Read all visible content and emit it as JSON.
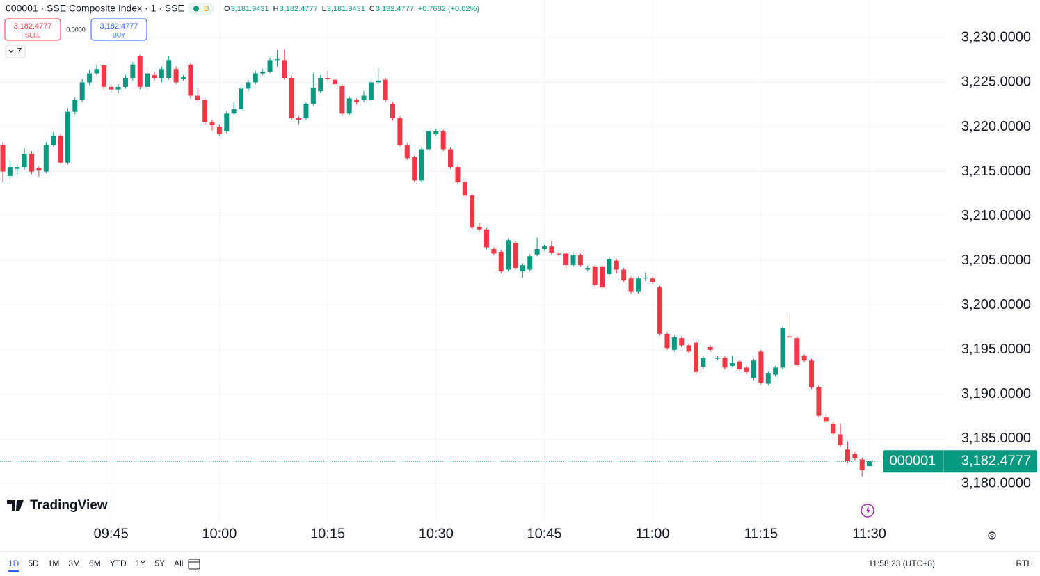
{
  "header": {
    "symbol_line": "000001 · SSE Composite Index · 1 · SSE",
    "badge": "D",
    "ohlc_legend": [
      {
        "key": "O",
        "value": "3,181.9431"
      },
      {
        "key": "H",
        "value": "3,182.4777"
      },
      {
        "key": "L",
        "value": "3,181.9431"
      },
      {
        "key": "C",
        "value": "3,182.4777"
      }
    ],
    "change": "+0.7682 (+0.02%)",
    "sell": {
      "price": "3,182.4777",
      "label": "SELL"
    },
    "spread": "0.0000",
    "buy": {
      "price": "3,182.4777",
      "label": "BUY"
    },
    "indicators_count": "7"
  },
  "chart_data": {
    "type": "candlestick",
    "up_color": "#089981",
    "down_color": "#f23645",
    "grid": true,
    "categories": [
      null,
      null,
      null,
      null,
      null,
      null,
      null,
      null,
      null,
      null,
      null,
      null,
      null,
      null,
      null,
      "09:45",
      null,
      null,
      null,
      null,
      null,
      null,
      null,
      null,
      null,
      null,
      null,
      null,
      null,
      null,
      "10:00",
      null,
      null,
      null,
      null,
      null,
      null,
      null,
      null,
      null,
      null,
      null,
      null,
      null,
      null,
      "10:15",
      null,
      null,
      null,
      null,
      null,
      null,
      null,
      null,
      null,
      null,
      null,
      null,
      null,
      null,
      "10:30",
      null,
      null,
      null,
      null,
      null,
      null,
      null,
      null,
      null,
      null,
      null,
      null,
      null,
      null,
      "10:45",
      null,
      null,
      null,
      null,
      null,
      null,
      null,
      null,
      null,
      null,
      null,
      null,
      null,
      null,
      "11:00",
      null,
      null,
      null,
      null,
      null,
      null,
      null,
      null,
      null,
      null,
      null,
      null,
      null,
      null,
      "11:15",
      null,
      null,
      null,
      null,
      null,
      null,
      null,
      null,
      null,
      null,
      null,
      null,
      null,
      null,
      "11:30"
    ],
    "ohlc": [
      [
        3218,
        3218.3,
        3213.8,
        3215
      ],
      [
        3214.5,
        3216.2,
        3214.2,
        3215.5
      ],
      [
        3215.3,
        3215.8,
        3214.6,
        3215.5
      ],
      [
        3215.5,
        3217.6,
        3215.2,
        3217
      ],
      [
        3217,
        3217.3,
        3214.7,
        3215
      ],
      [
        3215.4,
        3215.6,
        3214.4,
        3215.1
      ],
      [
        3215,
        3218.3,
        3214.8,
        3218
      ],
      [
        3218,
        3219.4,
        3217.8,
        3219
      ],
      [
        3219,
        3219.3,
        3215.8,
        3216
      ],
      [
        3216,
        3222.1,
        3215.8,
        3221.7
      ],
      [
        3221.7,
        3223.3,
        3221.4,
        3223
      ],
      [
        3223,
        3225.4,
        3222.8,
        3225
      ],
      [
        3225,
        3226.4,
        3224.7,
        3226
      ],
      [
        3226,
        3227,
        3225.8,
        3226.5
      ],
      [
        3226.9,
        3227.2,
        3224.2,
        3224.5
      ],
      [
        3224.5,
        3224.8,
        3223.8,
        3224.2
      ],
      [
        3224.2,
        3224.8,
        3223.8,
        3224.5
      ],
      [
        3224.5,
        3225.8,
        3224.3,
        3225.5
      ],
      [
        3225.5,
        3227.3,
        3225.2,
        3227
      ],
      [
        3228,
        3228.1,
        3224.2,
        3224.5
      ],
      [
        3224.5,
        3226.3,
        3224.2,
        3226
      ],
      [
        3225.8,
        3226.2,
        3225.2,
        3225.5
      ],
      [
        3225.5,
        3226.8,
        3225,
        3226.5
      ],
      [
        3225.5,
        3228,
        3225.3,
        3227.5
      ],
      [
        3226.5,
        3226.8,
        3224.8,
        3225
      ],
      [
        3225.4,
        3225.8,
        3225.2,
        3225.6
      ],
      [
        3227,
        3227.2,
        3223.2,
        3223.5
      ],
      [
        3223.5,
        3224.3,
        3222.8,
        3223
      ],
      [
        3223,
        3223.3,
        3220.2,
        3220.5
      ],
      [
        3220.5,
        3220.8,
        3219.6,
        3220.2
      ],
      [
        3220,
        3220.3,
        3219,
        3219.2
      ],
      [
        3219.5,
        3221.8,
        3219.3,
        3221.5
      ],
      [
        3221.5,
        3222.8,
        3221.3,
        3222
      ],
      [
        3222,
        3224.5,
        3221.8,
        3224.3
      ],
      [
        3224.3,
        3225.3,
        3224,
        3225
      ],
      [
        3225,
        3226.3,
        3224.8,
        3226
      ],
      [
        3226,
        3226.5,
        3225.8,
        3226.2
      ],
      [
        3226.2,
        3227.8,
        3226,
        3227.5
      ],
      [
        3227.5,
        3228.6,
        3226.8,
        3227.6
      ],
      [
        3227.5,
        3228.7,
        3225.3,
        3225.5
      ],
      [
        3225.5,
        3225.7,
        3220.8,
        3221
      ],
      [
        3221,
        3221.2,
        3220.3,
        3220.8
      ],
      [
        3221,
        3222.8,
        3220.8,
        3222.6
      ],
      [
        3222.6,
        3226,
        3222.4,
        3224.4
      ],
      [
        3224,
        3225.8,
        3223.8,
        3225.5
      ],
      [
        3225.5,
        3226.3,
        3225.2,
        3225.4
      ],
      [
        3225.3,
        3225.5,
        3224.5,
        3224.8
      ],
      [
        3224.6,
        3224.8,
        3221.2,
        3221.5
      ],
      [
        3221.5,
        3223.4,
        3221.3,
        3223.2
      ],
      [
        3223,
        3223.2,
        3222.5,
        3222.8
      ],
      [
        3223,
        3224,
        3222.8,
        3223.5
      ],
      [
        3223,
        3225.2,
        3222.8,
        3225
      ],
      [
        3225,
        3226.6,
        3224.7,
        3225.2
      ],
      [
        3225.3,
        3225.5,
        3222.8,
        3223
      ],
      [
        3222.6,
        3222.8,
        3220.7,
        3221
      ],
      [
        3221,
        3221.2,
        3217.8,
        3218
      ],
      [
        3218,
        3218.2,
        3216.3,
        3216.5
      ],
      [
        3216.6,
        3216.8,
        3213.8,
        3214
      ],
      [
        3214,
        3217.7,
        3213.8,
        3217.5
      ],
      [
        3217.5,
        3219.7,
        3217.3,
        3219.5
      ],
      [
        3219.2,
        3219.8,
        3219,
        3219.5
      ],
      [
        3219.5,
        3219.7,
        3217.3,
        3217.5
      ],
      [
        3217.5,
        3217.7,
        3215.3,
        3215.5
      ],
      [
        3215.5,
        3215.7,
        3213.6,
        3213.8
      ],
      [
        3213.8,
        3214,
        3212.1,
        3212.3
      ],
      [
        3212.3,
        3212.5,
        3208.5,
        3208.7
      ],
      [
        3208.8,
        3209.2,
        3208.3,
        3208.5
      ],
      [
        3208.5,
        3208.7,
        3206.3,
        3206.5
      ],
      [
        3206.3,
        3206.5,
        3205.6,
        3205.8
      ],
      [
        3206,
        3206.2,
        3203.6,
        3203.8
      ],
      [
        3204,
        3207.5,
        3203.8,
        3207.3
      ],
      [
        3207,
        3207.2,
        3204,
        3204.2
      ],
      [
        3203.8,
        3204.7,
        3203.1,
        3204.5
      ],
      [
        3204,
        3205.7,
        3203.8,
        3205.5
      ],
      [
        3205.7,
        3207.6,
        3205.5,
        3206.3
      ],
      [
        3206.3,
        3206.8,
        3206.1,
        3206.6
      ],
      [
        3206.6,
        3207.2,
        3205.7,
        3205.9
      ],
      [
        3205.8,
        3206,
        3205.5,
        3205.7
      ],
      [
        3205.8,
        3206,
        3204.1,
        3204.5
      ],
      [
        3204.5,
        3205.8,
        3204.3,
        3205.6
      ],
      [
        3205.6,
        3205.8,
        3204.3,
        3204.5
      ],
      [
        3204,
        3204.4,
        3203.8,
        3204.2
      ],
      [
        3204.3,
        3204.5,
        3202.1,
        3202.3
      ],
      [
        3204.3,
        3204.5,
        3201.8,
        3202
      ],
      [
        3203.5,
        3205.4,
        3203.3,
        3205.2
      ],
      [
        3205,
        3205.2,
        3203.6,
        3204
      ],
      [
        3204,
        3204.2,
        3202.6,
        3202.8
      ],
      [
        3203,
        3203.2,
        3201.3,
        3201.5
      ],
      [
        3201.5,
        3203.2,
        3201.3,
        3203
      ],
      [
        3203,
        3203.7,
        3202.7,
        3203.1
      ],
      [
        3203,
        3203.2,
        3202.4,
        3202.6
      ],
      [
        3202,
        3202.2,
        3196.6,
        3196.8
      ],
      [
        3196.8,
        3197,
        3195,
        3195.2
      ],
      [
        3195,
        3196.6,
        3194.8,
        3196.4
      ],
      [
        3196.3,
        3196.5,
        3195.3,
        3195.5
      ],
      [
        3195.5,
        3195.7,
        3194.6,
        3194.8
      ],
      [
        3195.8,
        3196,
        3192.3,
        3192.5
      ],
      [
        3193.1,
        3194.3,
        3192.8,
        3194.1
      ],
      [
        3195.3,
        3195.5,
        3194.8,
        3195
      ],
      [
        3194,
        3194.3,
        3193.8,
        3194.1
      ],
      [
        3194.1,
        3194.3,
        3192.8,
        3193
      ],
      [
        3193.2,
        3194.3,
        3193,
        3193.5
      ],
      [
        3193.7,
        3193.9,
        3192.6,
        3192.8
      ],
      [
        3193,
        3193.2,
        3192.3,
        3192.5
      ],
      [
        3191.8,
        3194,
        3191.6,
        3193.8
      ],
      [
        3194.8,
        3195,
        3191.1,
        3191.3
      ],
      [
        3191.2,
        3192.6,
        3191,
        3192.4
      ],
      [
        3192.2,
        3193.2,
        3192,
        3193
      ],
      [
        3193,
        3197.6,
        3192.8,
        3197.4
      ],
      [
        3196.5,
        3199.1,
        3196.2,
        3196.4
      ],
      [
        3196.3,
        3196.5,
        3193.1,
        3193.3
      ],
      [
        3194.3,
        3194.5,
        3193.6,
        3193.8
      ],
      [
        3193.8,
        3194,
        3190.6,
        3190.8
      ],
      [
        3190.8,
        3191,
        3187.4,
        3187.6
      ],
      [
        3187.4,
        3187.8,
        3186.8,
        3187
      ],
      [
        3186.7,
        3186.9,
        3185.4,
        3185.6
      ],
      [
        3185.5,
        3186.7,
        3184.1,
        3184.3
      ],
      [
        3183.8,
        3184.7,
        3182.3,
        3182.5
      ],
      [
        3183.3,
        3183.5,
        3182.6,
        3182.8
      ],
      [
        3182.7,
        3182.9,
        3180.8,
        3181.5
      ],
      [
        3181.9431,
        3182.4777,
        3181.9431,
        3182.4777
      ]
    ],
    "ylim": [
      3176.1,
      3231.9
    ],
    "yticks": [
      {
        "value": 3180,
        "label": "3,180.0000"
      },
      {
        "value": 3185,
        "label": "3,185.0000"
      },
      {
        "value": 3190,
        "label": "3,190.0000"
      },
      {
        "value": 3195,
        "label": "3,195.0000"
      },
      {
        "value": 3200,
        "label": "3,200.0000"
      },
      {
        "value": 3205,
        "label": "3,205.0000"
      },
      {
        "value": 3210,
        "label": "3,210.0000"
      },
      {
        "value": 3215,
        "label": "3,215.0000"
      },
      {
        "value": 3220,
        "label": "3,220.0000"
      },
      {
        "value": 3225,
        "label": "3,225.0000"
      },
      {
        "value": 3230,
        "label": "3,230.0000"
      }
    ],
    "last_price": {
      "symbol": "000001",
      "value": 3182.4777,
      "label": "3,182.4777"
    }
  },
  "branding": "TradingView",
  "footer": {
    "ranges": [
      "1D",
      "5D",
      "1M",
      "3M",
      "6M",
      "YTD",
      "1Y",
      "5Y",
      "All"
    ],
    "clock": "11:58:23 (UTC+8)",
    "session": "RTH"
  }
}
